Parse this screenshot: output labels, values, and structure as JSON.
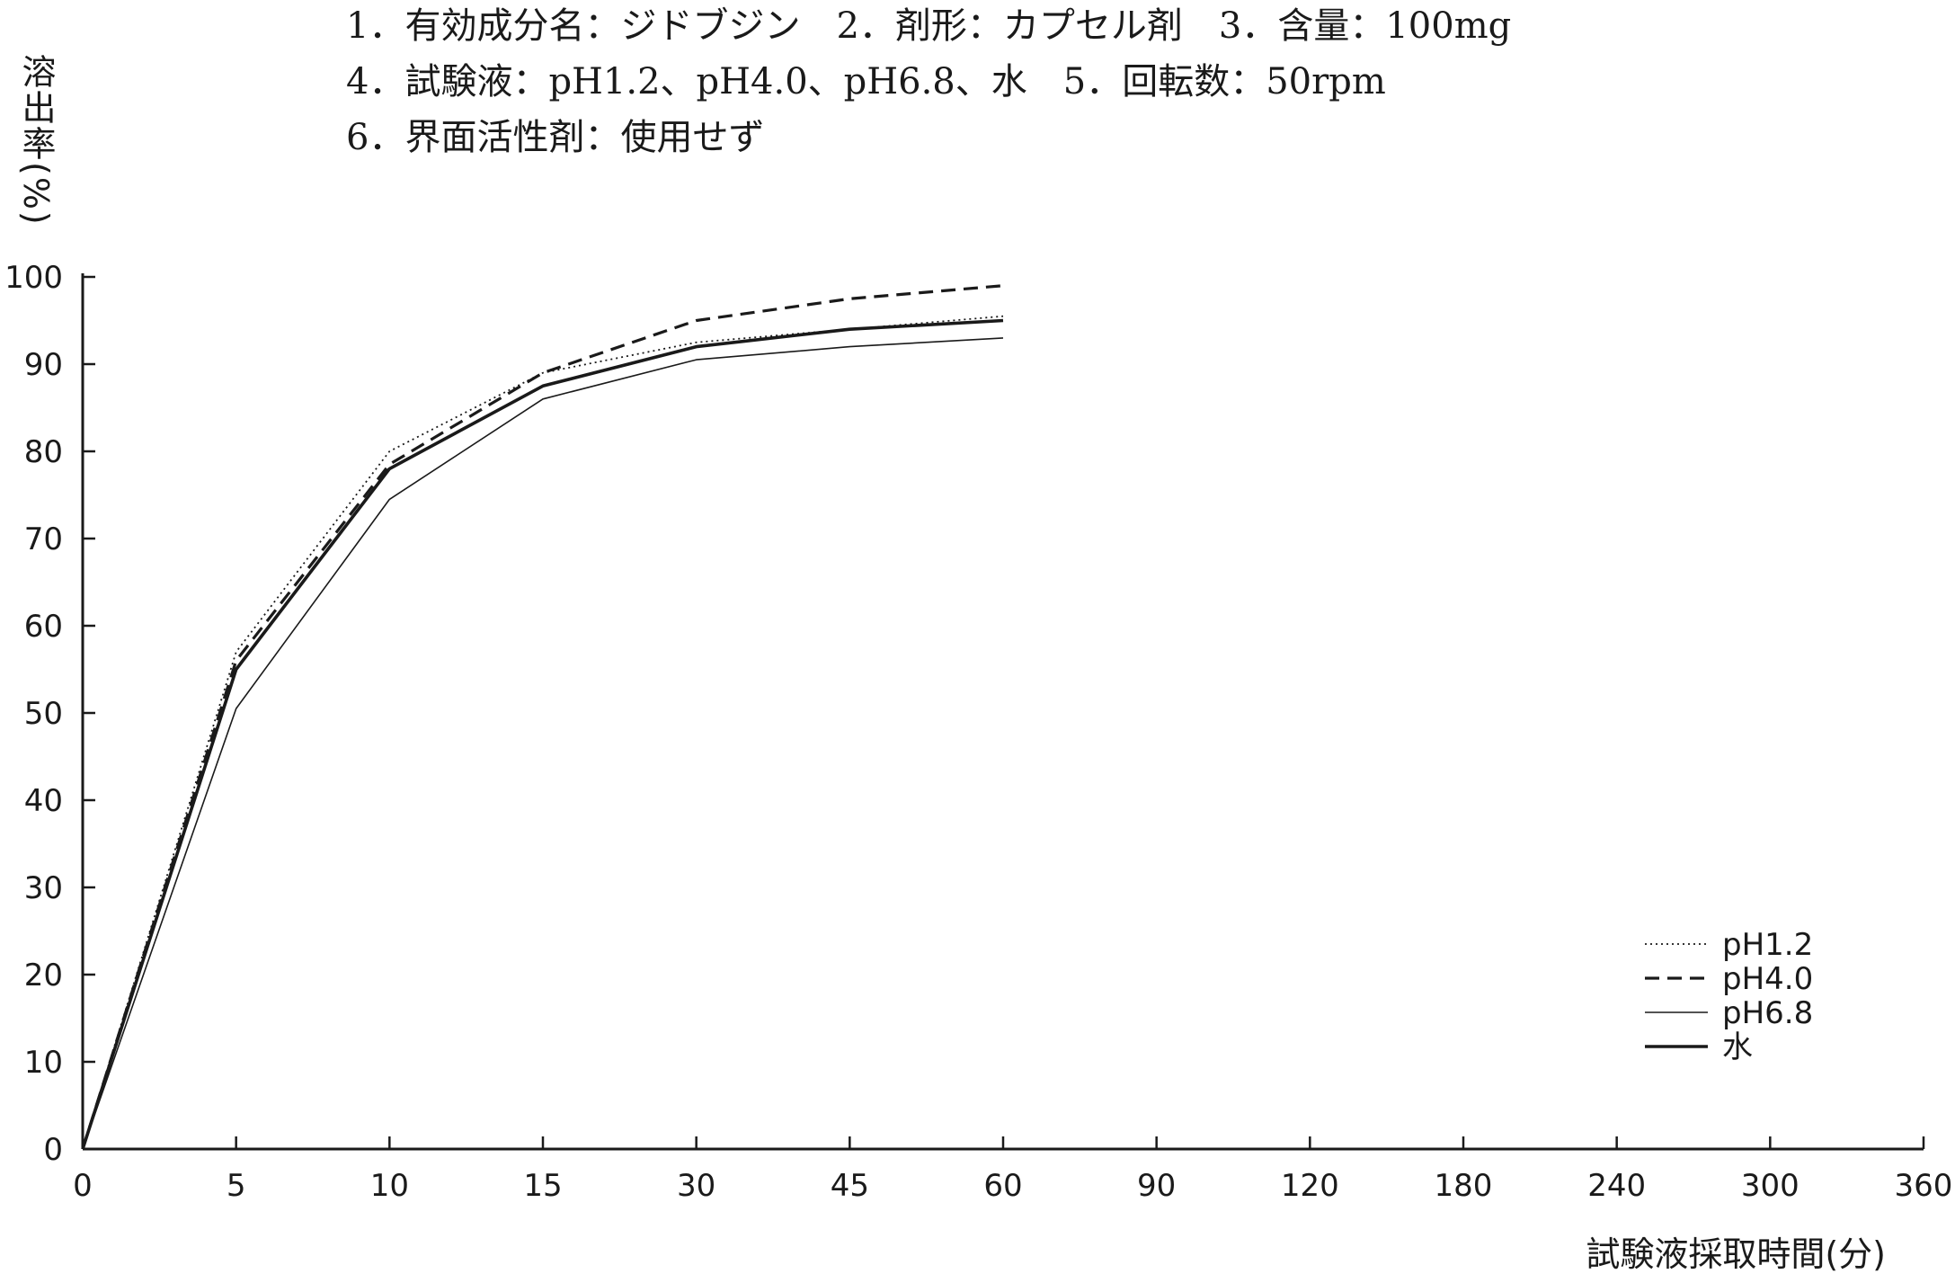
{
  "header": {
    "lines": [
      "1．有効成分名：ジドブジン　2．剤形：カプセル剤　3．含量：100mg",
      "4．試験液：pH1.2、pH4.0、pH6.8、水　5．回転数：50rpm",
      "6．界面活性剤：使用せず"
    ]
  },
  "chart_data": {
    "type": "line",
    "title": "",
    "xlabel": "試験液採取時間(分)",
    "ylabel": "溶出率(%)",
    "x": [
      "0",
      "5",
      "10",
      "15",
      "30",
      "45",
      "60"
    ],
    "x_ticks": [
      "0",
      "5",
      "10",
      "15",
      "30",
      "45",
      "60",
      "90",
      "120",
      "180",
      "240",
      "300",
      "360"
    ],
    "x_scale": "categorical, evenly spaced",
    "y_ticks": [
      "0",
      "10",
      "20",
      "30",
      "40",
      "50",
      "60",
      "70",
      "80",
      "90",
      "100"
    ],
    "ylim": [
      0,
      100
    ],
    "grid": false,
    "legend_position": "bottom-right",
    "series": [
      {
        "name": "pH1.2",
        "style": "dotted",
        "values": [
          0,
          57,
          80,
          89,
          92.5,
          94,
          95.5
        ]
      },
      {
        "name": "pH4.0",
        "style": "dashed",
        "values": [
          0,
          56,
          78.5,
          89,
          95,
          97.5,
          99
        ]
      },
      {
        "name": "pH6.8",
        "style": "solid-thin",
        "values": [
          0,
          50.5,
          74.5,
          86,
          90.5,
          92,
          93
        ]
      },
      {
        "name": "水",
        "style": "solid-thick",
        "values": [
          0,
          55,
          78,
          87.5,
          92,
          94,
          95
        ]
      }
    ]
  },
  "colors": {
    "ink": "#1a1a1a",
    "background": "#ffffff"
  }
}
